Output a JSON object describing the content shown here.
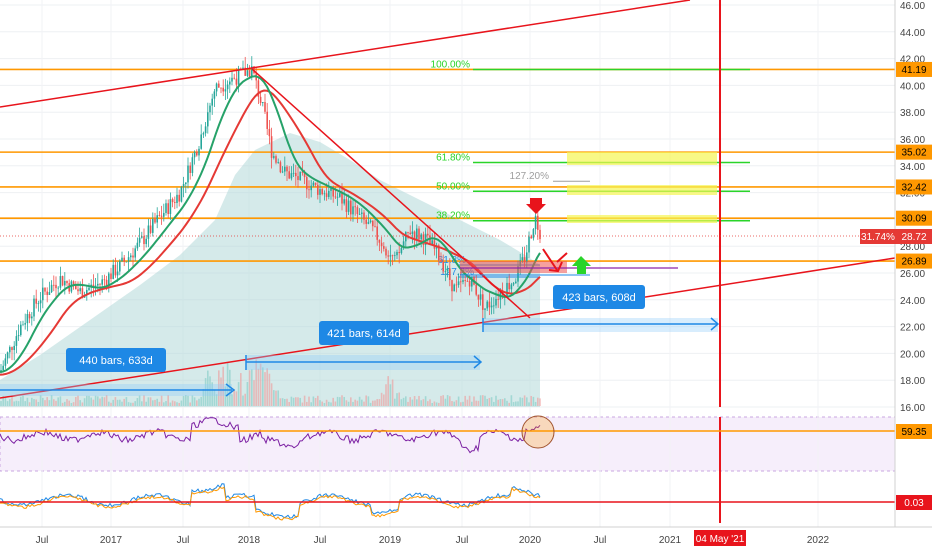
{
  "chart_data": {
    "type": "candlestick",
    "price_axis": {
      "ylim": [
        16,
        46
      ],
      "ticks": [
        "16.00",
        "18.00",
        "20.00",
        "22.00",
        "24.00",
        "26.00",
        "28.00",
        "30.00",
        "32.00",
        "34.00",
        "36.00",
        "38.00",
        "40.00",
        "42.00",
        "44.00",
        "46.00"
      ]
    },
    "time_axis": {
      "labels": [
        "Jul",
        "2017",
        "Jul",
        "2018",
        "Jul",
        "2019",
        "Jul",
        "2020",
        "Jul",
        "2021",
        "2022"
      ],
      "highlight_label": "04 May '21"
    },
    "horizontal_levels": [
      {
        "value": 41.19,
        "label": "41.19",
        "color": "#ff9800"
      },
      {
        "value": 35.02,
        "label": "35.02",
        "color": "#ff9800"
      },
      {
        "value": 32.42,
        "label": "32.42",
        "color": "#ff9800"
      },
      {
        "value": 30.09,
        "label": "30.09",
        "color": "#ff9800"
      },
      {
        "value": 26.89,
        "label": "26.89",
        "color": "#ff9800"
      }
    ],
    "current_price": {
      "value": 28.72,
      "label": "28.72",
      "change_label": "31.74%"
    },
    "fib_levels": [
      {
        "label": "100.00%",
        "value": 41.19
      },
      {
        "label": "61.80%",
        "value": 34.25
      },
      {
        "label": "50.00%",
        "value": 32.1
      },
      {
        "label": "38.20%",
        "value": 29.9
      },
      {
        "label": "127.20%",
        "value": 32.85
      },
      {
        "label": "61.8%",
        "value": 26.6
      },
      {
        "label": "127.2%",
        "value": 25.7
      }
    ],
    "bar_counts": [
      {
        "label": "440 bars, 633d"
      },
      {
        "label": "421 bars, 614d"
      },
      {
        "label": "423 bars, 608d"
      }
    ],
    "rsi": {
      "level_label": "59.35",
      "value": 59.35
    },
    "macd": {
      "level_label": "0.03",
      "value": 0.03
    },
    "colors": {
      "support_resistance": "#ff9800",
      "trendline": "#e8141c",
      "fib": "#2ad42a",
      "volume_profile": "#b2d8d8",
      "ma_fast": "#26a269",
      "ma_slow": "#e53935",
      "rsi_band": "#f3e5f5",
      "measure_box": "#1e88e5"
    }
  }
}
